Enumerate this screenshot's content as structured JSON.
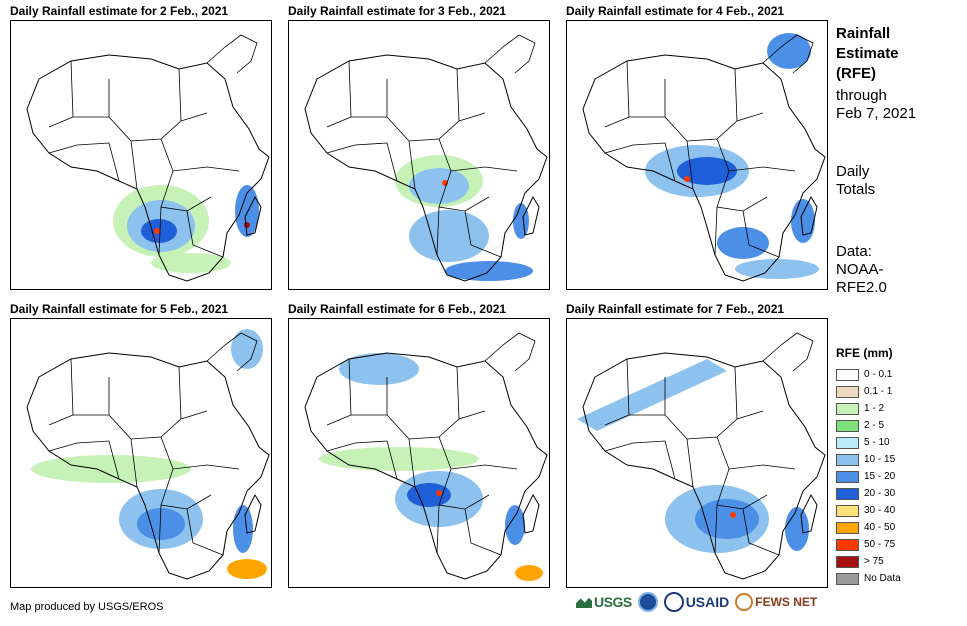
{
  "panels": [
    {
      "title": "Daily Rainfall estimate for 2 Feb., 2021"
    },
    {
      "title": "Daily Rainfall estimate for 3 Feb., 2021"
    },
    {
      "title": "Daily Rainfall estimate for 4 Feb., 2021"
    },
    {
      "title": "Daily Rainfall estimate for 5 Feb., 2021"
    },
    {
      "title": "Daily Rainfall estimate for 6 Feb., 2021"
    },
    {
      "title": "Daily Rainfall estimate for 7 Feb., 2021"
    }
  ],
  "side": {
    "title_line1": "Rainfall",
    "title_line2": "Estimate",
    "title_line3": "(RFE)",
    "through_line1": "through",
    "through_line2": "Feb 7, 2021",
    "totals_line1": "Daily",
    "totals_line2": "Totals",
    "data_line1": "Data:",
    "data_line2": "NOAA-",
    "data_line3": "RFE2.0"
  },
  "legend": {
    "title": "RFE (mm)",
    "items": [
      {
        "label": "0 - 0.1",
        "color": "#ffffff"
      },
      {
        "label": "0.1 - 1",
        "color": "#efdcc0"
      },
      {
        "label": "1 - 2",
        "color": "#c6f2b8"
      },
      {
        "label": "2 - 5",
        "color": "#7ee07a"
      },
      {
        "label": "5 - 10",
        "color": "#b9ecf4"
      },
      {
        "label": "10 - 15",
        "color": "#8ec2ee"
      },
      {
        "label": "15 - 20",
        "color": "#4b8fe6"
      },
      {
        "label": "20 - 30",
        "color": "#1f5fd8"
      },
      {
        "label": "30 - 40",
        "color": "#ffe27a"
      },
      {
        "label": "40 - 50",
        "color": "#ffa400"
      },
      {
        "label": "50 - 75",
        "color": "#ff3a00"
      },
      {
        "label": "> 75",
        "color": "#a50f0f"
      },
      {
        "label": "No Data",
        "color": "#9a9a9a"
      }
    ]
  },
  "credit": "Map produced by USGS/EROS",
  "logos": {
    "usgs": "USGS",
    "usaid": "USAID",
    "fews": "FEWS NET"
  }
}
